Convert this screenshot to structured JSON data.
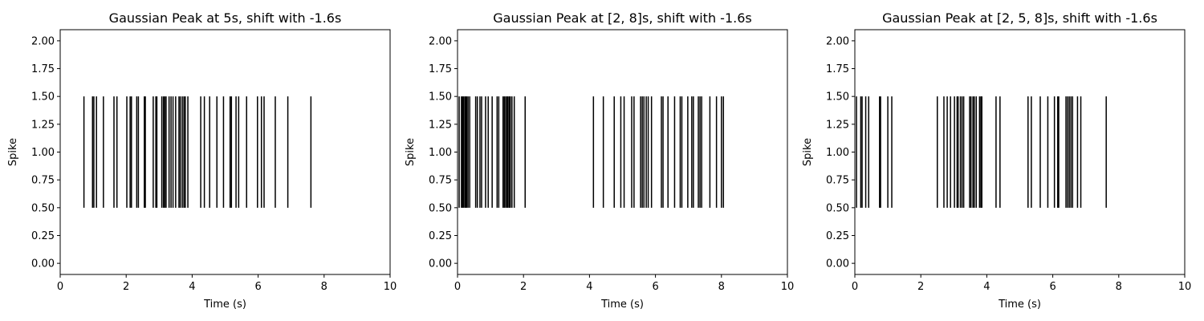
{
  "chart_data": [
    {
      "type": "eventplot",
      "title": "Gaussian Peak at 5s, shift with -1.6s",
      "xlabel": "Time (s)",
      "ylabel": "Spike",
      "xlim": [
        0,
        10
      ],
      "ylim": [
        -0.1,
        2.1
      ],
      "xticks": [
        "0",
        "2",
        "4",
        "6",
        "8",
        "10"
      ],
      "yticks": [
        "0.00",
        "0.25",
        "0.50",
        "0.75",
        "1.00",
        "1.25",
        "1.50",
        "1.75",
        "2.00"
      ],
      "grid": false,
      "line_range": [
        0.5,
        1.5
      ],
      "events": [
        0.72,
        0.98,
        1.02,
        1.1,
        1.31,
        1.63,
        1.72,
        2.02,
        2.12,
        2.16,
        2.32,
        2.37,
        2.55,
        2.58,
        2.82,
        2.9,
        2.93,
        3.08,
        3.13,
        3.17,
        3.21,
        3.3,
        3.36,
        3.42,
        3.5,
        3.6,
        3.64,
        3.7,
        3.75,
        3.79,
        3.87,
        4.26,
        4.37,
        4.53,
        4.75,
        4.95,
        5.15,
        5.19,
        5.33,
        5.41,
        5.65,
        5.98,
        6.1,
        6.18,
        6.52,
        6.9,
        7.6
      ],
      "color": "#000000"
    },
    {
      "type": "eventplot",
      "title": "Gaussian Peak at [2, 8]s, shift with -1.6s",
      "xlabel": "Time (s)",
      "ylabel": "Spike",
      "xlim": [
        0,
        10
      ],
      "ylim": [
        -0.1,
        2.1
      ],
      "xticks": [
        "0",
        "2",
        "4",
        "6",
        "8",
        "10"
      ],
      "yticks": [
        "0.00",
        "0.25",
        "0.50",
        "0.75",
        "1.00",
        "1.25",
        "1.50",
        "1.75",
        "2.00"
      ],
      "grid": false,
      "line_range": [
        0.5,
        1.5
      ],
      "events": [
        0.05,
        0.12,
        0.15,
        0.18,
        0.22,
        0.25,
        0.28,
        0.32,
        0.37,
        0.55,
        0.6,
        0.68,
        0.73,
        0.85,
        0.93,
        1.05,
        1.2,
        1.25,
        1.38,
        1.42,
        1.46,
        1.5,
        1.53,
        1.57,
        1.6,
        1.65,
        1.72,
        2.05,
        4.12,
        4.42,
        4.75,
        4.95,
        5.05,
        5.28,
        5.35,
        5.55,
        5.6,
        5.65,
        5.72,
        5.78,
        5.88,
        6.18,
        6.23,
        6.38,
        6.58,
        6.75,
        6.8,
        6.98,
        7.1,
        7.15,
        7.3,
        7.35,
        7.4,
        7.65,
        7.85,
        8.0,
        8.06
      ],
      "color": "#000000"
    },
    {
      "type": "eventplot",
      "title": "Gaussian Peak at [2, 5, 8]s, shift with -1.6s",
      "xlabel": "Time (s)",
      "ylabel": "Spike",
      "xlim": [
        0,
        10
      ],
      "ylim": [
        -0.1,
        2.1
      ],
      "xticks": [
        "0",
        "2",
        "4",
        "6",
        "8",
        "10"
      ],
      "yticks": [
        "0.00",
        "0.25",
        "0.50",
        "0.75",
        "1.00",
        "1.25",
        "1.50",
        "1.75",
        "2.00"
      ],
      "grid": false,
      "line_range": [
        0.5,
        1.5
      ],
      "events": [
        0.05,
        0.18,
        0.22,
        0.33,
        0.42,
        0.75,
        0.78,
        1.0,
        1.12,
        2.5,
        2.7,
        2.8,
        2.9,
        3.02,
        3.1,
        3.13,
        3.2,
        3.25,
        3.3,
        3.48,
        3.52,
        3.58,
        3.62,
        3.68,
        3.78,
        3.82,
        3.85,
        4.28,
        4.4,
        5.25,
        5.35,
        5.62,
        5.85,
        6.05,
        6.15,
        6.18,
        6.4,
        6.45,
        6.5,
        6.55,
        6.6,
        6.75,
        6.85,
        7.62
      ],
      "color": "#000000"
    }
  ]
}
